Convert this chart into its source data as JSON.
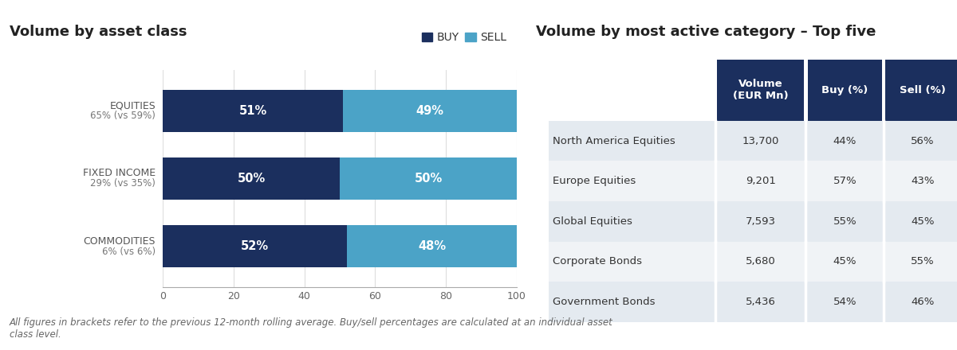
{
  "left_title": "Volume by asset class",
  "right_title": "Volume by most active category – Top five",
  "footnote": "All figures in brackets refer to the previous 12-month rolling average. Buy/sell percentages are calculated at an individual asset\nclass level.",
  "bar_categories": [
    {
      "label_top": "EQUITIES",
      "label_bot": "65% (vs 59%)",
      "buy": 51,
      "sell": 49
    },
    {
      "label_top": "FIXED INCOME",
      "label_bot": "29% (vs 35%)",
      "buy": 50,
      "sell": 50
    },
    {
      "label_top": "COMMODITIES",
      "label_bot": "6% (vs 6%)",
      "buy": 52,
      "sell": 48
    }
  ],
  "buy_color": "#1b2f5e",
  "sell_color": "#4ba3c7",
  "table_header_color": "#1b2f5e",
  "table_header_text_color": "#ffffff",
  "table_row_colors": [
    "#e4eaf0",
    "#f0f3f6"
  ],
  "table_text_color": "#333333",
  "table_col0_color": "#dde4ec",
  "table_headers": [
    "Volume\n(EUR Mn)",
    "Buy (%)",
    "Sell (%)"
  ],
  "table_rows": [
    [
      "North America Equities",
      "13,700",
      "44%",
      "56%"
    ],
    [
      "Europe Equities",
      "9,201",
      "57%",
      "43%"
    ],
    [
      "Global Equities",
      "7,593",
      "55%",
      "45%"
    ],
    [
      "Corporate Bonds",
      "5,680",
      "45%",
      "55%"
    ],
    [
      "Government Bonds",
      "5,436",
      "54%",
      "46%"
    ]
  ],
  "background_color": "#ffffff",
  "title_fontsize": 13,
  "bar_label_fontsize": 10.5,
  "axis_tick_fontsize": 9,
  "legend_fontsize": 10,
  "footnote_fontsize": 8.5,
  "table_fontsize": 9.5,
  "ytick_fontsize": 9
}
